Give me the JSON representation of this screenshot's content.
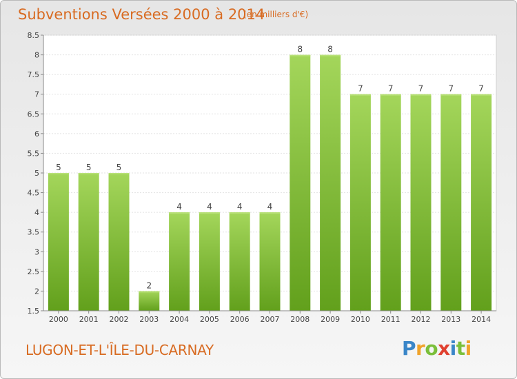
{
  "header": {
    "title": "Subventions Versées 2000 à 2014",
    "unit": "(en milliers d'€)"
  },
  "footer": {
    "commune": "LUGON-ET-L'ÎLE-DU-CARNAY",
    "logo": "Proxiti"
  },
  "colors": {
    "bar_top": "#a4d65b",
    "bar_bottom": "#62a01c",
    "axis_text": "#444444",
    "accent": "#d86b22"
  },
  "chart_data": {
    "type": "bar",
    "title": "Subventions Versées 2000 à 2014",
    "subtitle": "(en milliers d'€)",
    "xlabel": "",
    "ylabel": "",
    "categories": [
      "2000",
      "2001",
      "2002",
      "2003",
      "2004",
      "2005",
      "2006",
      "2007",
      "2008",
      "2009",
      "2010",
      "2011",
      "2012",
      "2013",
      "2014"
    ],
    "values": [
      5,
      5,
      5,
      2,
      4,
      4,
      4,
      4,
      8,
      8,
      7,
      7,
      7,
      7,
      7
    ],
    "ylim": [
      1.5,
      8.5
    ],
    "yticks": [
      "1.5",
      "2",
      "2.5",
      "3",
      "3.5",
      "4",
      "4.5",
      "5",
      "5.5",
      "6",
      "6.5",
      "7",
      "7.5",
      "8",
      "8.5"
    ],
    "grid": true,
    "legend": "none"
  }
}
